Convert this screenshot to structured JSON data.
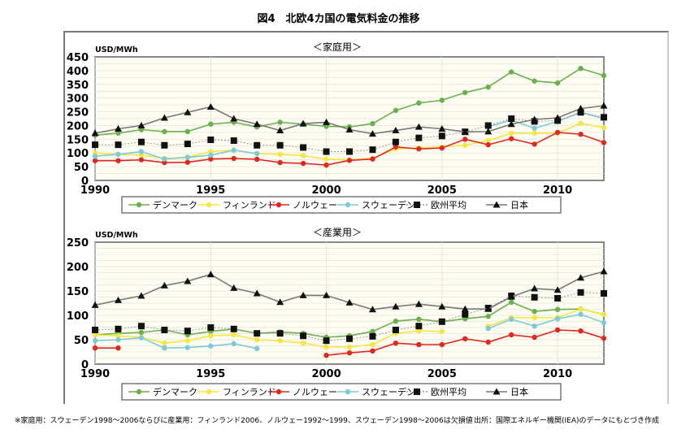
{
  "title": "図4　北欧4カ国の電気料金の推移",
  "footnote_left": "※家庭用：スウェーデン1998～2006ならびに産業用：フィンランド2006、ノルウェー1992～1999、スウェーデン1998～2006は欠損値",
  "footnote_right": "出所：国際エネルギー機関(IEA)のデータにもとづき作成",
  "colors": {
    "デンマーク": "#6ab04c",
    "フィンランド": "#f5e642",
    "ノルウェー": "#e0281e",
    "スウェーデン": "#7ecbd8",
    "欧州平均": "#111111",
    "日本": "#111111"
  },
  "chart_data": [
    {
      "type": "line",
      "title": "＜家庭用＞",
      "ylabel": "USD/MWh",
      "xlabel": "",
      "ylim": [
        0,
        450
      ],
      "yticks": [
        "0",
        "50",
        "100",
        "150",
        "200",
        "250",
        "300",
        "350",
        "400",
        "450"
      ],
      "xticks": [
        "1990",
        "1995",
        "2000",
        "2005",
        "2010"
      ],
      "grid": true,
      "legend": "bottom",
      "x": [
        1990,
        1991,
        1992,
        1993,
        1994,
        1995,
        1996,
        1997,
        1998,
        1999,
        2000,
        2001,
        2002,
        2003,
        2004,
        2005,
        2006,
        2007,
        2008,
        2009,
        2010,
        2011,
        2012
      ],
      "series": [
        {
          "name": "デンマーク",
          "values": [
            165,
            172,
            185,
            178,
            178,
            205,
            212,
            195,
            212,
            205,
            197,
            195,
            207,
            255,
            282,
            292,
            320,
            340,
            395,
            362,
            355,
            408,
            382
          ]
        },
        {
          "name": "フィンランド",
          "values": [
            100,
            95,
            92,
            80,
            85,
            105,
            110,
            98,
            95,
            90,
            78,
            75,
            80,
            115,
            118,
            122,
            128,
            145,
            172,
            172,
            172,
            208,
            192
          ]
        },
        {
          "name": "ノルウェー",
          "values": [
            72,
            72,
            75,
            65,
            66,
            78,
            80,
            77,
            65,
            62,
            56,
            73,
            78,
            122,
            115,
            118,
            150,
            130,
            152,
            132,
            175,
            168,
            138
          ]
        },
        {
          "name": "スウェーデン",
          "values": [
            88,
            95,
            105,
            78,
            84,
            92,
            110,
            98,
            null,
            null,
            null,
            null,
            null,
            null,
            null,
            null,
            null,
            195,
            220,
            190,
            215,
            248,
            225
          ]
        },
        {
          "name": "欧州平均",
          "values": [
            130,
            130,
            140,
            128,
            133,
            148,
            145,
            128,
            128,
            120,
            105,
            105,
            112,
            140,
            155,
            162,
            177,
            200,
            225,
            215,
            218,
            248,
            230
          ]
        },
        {
          "name": "日本",
          "values": [
            172,
            188,
            200,
            228,
            248,
            268,
            225,
            205,
            182,
            207,
            212,
            185,
            170,
            182,
            195,
            188,
            177,
            178,
            205,
            222,
            228,
            262,
            272
          ]
        }
      ]
    },
    {
      "type": "line",
      "title": "＜産業用＞",
      "ylabel": "USD/MWh",
      "xlabel": "",
      "ylim": [
        0,
        250
      ],
      "yticks": [
        "0",
        "50",
        "100",
        "150",
        "200",
        "250"
      ],
      "xticks": [
        "1990",
        "1995",
        "2000",
        "2005",
        "2010"
      ],
      "grid": true,
      "legend": "bottom",
      "x": [
        1990,
        1991,
        1992,
        1993,
        1994,
        1995,
        1996,
        1997,
        1998,
        1999,
        2000,
        2001,
        2002,
        2003,
        2004,
        2005,
        2006,
        2007,
        2008,
        2009,
        2010,
        2011,
        2012
      ],
      "series": [
        {
          "name": "デンマーク",
          "values": [
            60,
            63,
            65,
            70,
            60,
            67,
            72,
            63,
            66,
            63,
            55,
            58,
            67,
            88,
            92,
            87,
            93,
            98,
            127,
            108,
            112,
            113,
            102
          ]
        },
        {
          "name": "フィンランド",
          "values": [
            60,
            58,
            55,
            43,
            48,
            58,
            60,
            50,
            48,
            43,
            35,
            35,
            40,
            63,
            68,
            67,
            null,
            78,
            95,
            95,
            95,
            113,
            102
          ]
        },
        {
          "name": "ノルウェー",
          "values": [
            33,
            33,
            null,
            null,
            null,
            null,
            null,
            null,
            null,
            null,
            18,
            23,
            27,
            43,
            40,
            40,
            52,
            45,
            60,
            55,
            70,
            68,
            53
          ]
        },
        {
          "name": "スウェーデン",
          "values": [
            48,
            50,
            54,
            33,
            34,
            37,
            42,
            32,
            null,
            null,
            null,
            null,
            null,
            null,
            null,
            null,
            null,
            73,
            92,
            78,
            93,
            102,
            85
          ]
        },
        {
          "name": "欧州平均",
          "values": [
            70,
            72,
            78,
            70,
            68,
            75,
            72,
            63,
            63,
            58,
            48,
            52,
            57,
            70,
            78,
            87,
            102,
            115,
            140,
            137,
            135,
            147,
            145
          ]
        },
        {
          "name": "日本",
          "values": [
            121,
            131,
            140,
            161,
            170,
            184,
            156,
            145,
            127,
            141,
            141,
            126,
            112,
            118,
            123,
            118,
            113,
            113,
            138,
            155,
            152,
            177,
            190
          ]
        }
      ]
    }
  ]
}
